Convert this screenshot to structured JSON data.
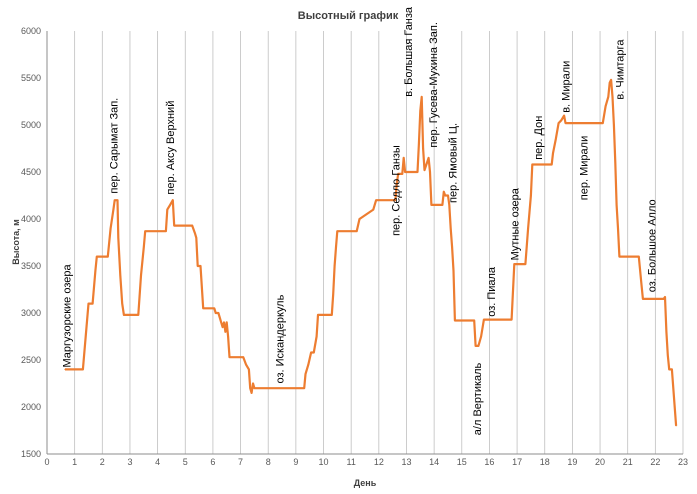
{
  "colors": {
    "line": "#ed7d31",
    "grid": "#bfbfbf",
    "text": "#404040"
  },
  "chart_data": {
    "type": "line",
    "title": "Высотный график",
    "xlabel": "День",
    "ylabel": "Высота, м",
    "xlim": [
      0,
      23
    ],
    "ylim": [
      1500,
      6000
    ],
    "xticks": [
      0,
      1,
      2,
      3,
      4,
      5,
      6,
      7,
      8,
      9,
      10,
      11,
      12,
      13,
      14,
      15,
      16,
      17,
      18,
      19,
      20,
      21,
      22,
      23
    ],
    "yticks": [
      1500,
      2000,
      2500,
      3000,
      3500,
      4000,
      4500,
      5000,
      5500,
      6000
    ],
    "grid": "vertical",
    "legend": "none",
    "series": [
      {
        "points": [
          [
            0.65,
            2400
          ],
          [
            1.3,
            2400
          ],
          [
            1.4,
            2750
          ],
          [
            1.5,
            3100
          ],
          [
            1.65,
            3100
          ],
          [
            1.75,
            3450
          ],
          [
            1.8,
            3600
          ],
          [
            2.2,
            3600
          ],
          [
            2.3,
            3900
          ],
          [
            2.4,
            4100
          ],
          [
            2.45,
            4200
          ],
          [
            2.55,
            4200
          ],
          [
            2.58,
            3800
          ],
          [
            2.65,
            3400
          ],
          [
            2.72,
            3100
          ],
          [
            2.78,
            2980
          ],
          [
            3.3,
            2980
          ],
          [
            3.4,
            3400
          ],
          [
            3.5,
            3700
          ],
          [
            3.55,
            3870
          ],
          [
            4.3,
            3870
          ],
          [
            4.35,
            4100
          ],
          [
            4.45,
            4150
          ],
          [
            4.55,
            4200
          ],
          [
            4.6,
            3930
          ],
          [
            5.25,
            3930
          ],
          [
            5.35,
            3850
          ],
          [
            5.4,
            3800
          ],
          [
            5.45,
            3500
          ],
          [
            5.55,
            3500
          ],
          [
            5.65,
            3050
          ],
          [
            6.05,
            3050
          ],
          [
            6.1,
            3000
          ],
          [
            6.2,
            3000
          ],
          [
            6.3,
            2900
          ],
          [
            6.35,
            2850
          ],
          [
            6.4,
            2900
          ],
          [
            6.45,
            2800
          ],
          [
            6.5,
            2900
          ],
          [
            6.55,
            2750
          ],
          [
            6.6,
            2530
          ],
          [
            7.1,
            2530
          ],
          [
            7.2,
            2450
          ],
          [
            7.3,
            2400
          ],
          [
            7.35,
            2200
          ],
          [
            7.4,
            2150
          ],
          [
            7.45,
            2250
          ],
          [
            7.5,
            2200
          ],
          [
            9.3,
            2200
          ],
          [
            9.35,
            2350
          ],
          [
            9.45,
            2450
          ],
          [
            9.55,
            2580
          ],
          [
            9.65,
            2580
          ],
          [
            9.75,
            2750
          ],
          [
            9.8,
            2980
          ],
          [
            10.3,
            2980
          ],
          [
            10.35,
            3200
          ],
          [
            10.4,
            3500
          ],
          [
            10.45,
            3700
          ],
          [
            10.5,
            3870
          ],
          [
            11.2,
            3870
          ],
          [
            11.3,
            4000
          ],
          [
            11.8,
            4100
          ],
          [
            11.9,
            4200
          ],
          [
            12.6,
            4200
          ],
          [
            12.65,
            4380
          ],
          [
            12.7,
            4480
          ],
          [
            12.85,
            4480
          ],
          [
            12.9,
            4650
          ],
          [
            12.95,
            4500
          ],
          [
            13.4,
            4500
          ],
          [
            13.45,
            4800
          ],
          [
            13.5,
            5150
          ],
          [
            13.55,
            5300
          ],
          [
            13.6,
            4750
          ],
          [
            13.65,
            4520
          ],
          [
            13.8,
            4650
          ],
          [
            13.85,
            4500
          ],
          [
            13.9,
            4150
          ],
          [
            14.3,
            4150
          ],
          [
            14.35,
            4290
          ],
          [
            14.4,
            4250
          ],
          [
            14.5,
            4250
          ],
          [
            14.55,
            4150
          ],
          [
            14.6,
            3900
          ],
          [
            14.65,
            3700
          ],
          [
            14.7,
            3450
          ],
          [
            14.75,
            2920
          ],
          [
            15.45,
            2920
          ],
          [
            15.5,
            2650
          ],
          [
            15.6,
            2650
          ],
          [
            15.7,
            2750
          ],
          [
            15.8,
            2930
          ],
          [
            16.8,
            2930
          ],
          [
            16.9,
            3520
          ],
          [
            17.3,
            3520
          ],
          [
            17.4,
            3900
          ],
          [
            17.5,
            4250
          ],
          [
            17.55,
            4580
          ],
          [
            18.25,
            4580
          ],
          [
            18.3,
            4700
          ],
          [
            18.4,
            4850
          ],
          [
            18.5,
            5020
          ],
          [
            18.6,
            5050
          ],
          [
            18.7,
            5100
          ],
          [
            18.75,
            5020
          ],
          [
            20.1,
            5020
          ],
          [
            20.2,
            5200
          ],
          [
            20.3,
            5300
          ],
          [
            20.35,
            5450
          ],
          [
            20.4,
            5480
          ],
          [
            20.45,
            5300
          ],
          [
            20.5,
            5000
          ],
          [
            20.55,
            4600
          ],
          [
            20.6,
            4150
          ],
          [
            20.65,
            3900
          ],
          [
            20.7,
            3600
          ],
          [
            21.4,
            3600
          ],
          [
            21.5,
            3300
          ],
          [
            21.55,
            3150
          ],
          [
            22.3,
            3150
          ],
          [
            22.35,
            3170
          ],
          [
            22.4,
            2800
          ],
          [
            22.45,
            2550
          ],
          [
            22.5,
            2400
          ],
          [
            22.6,
            2400
          ],
          [
            22.7,
            2000
          ],
          [
            22.75,
            1800
          ]
        ]
      }
    ],
    "annotations": [
      {
        "text": "Маргузорские озера",
        "x": 0.85,
        "y": 2420
      },
      {
        "text": "пер. Сарымат Зап.",
        "x": 2.55,
        "y": 4270
      },
      {
        "text": "пер. Аксу Верхний",
        "x": 4.6,
        "y": 4260
      },
      {
        "text": "оз. Искандеркуль",
        "x": 8.55,
        "y": 2250
      },
      {
        "text": "пер. Седло Ганзы",
        "x": 12.75,
        "y": 3820
      },
      {
        "text": "в. Большая Ганза",
        "x": 13.2,
        "y": 5300
      },
      {
        "text": "пер. Гусева-Мухина Зап.",
        "x": 14.1,
        "y": 4760
      },
      {
        "text": "пер. Ямовый Ц.",
        "x": 14.8,
        "y": 4170
      },
      {
        "text": "а/л Вертикаль",
        "x": 15.7,
        "y": 1700
      },
      {
        "text": "оз. Пиала",
        "x": 16.2,
        "y": 2960
      },
      {
        "text": "Мутные озера",
        "x": 17.05,
        "y": 3560
      },
      {
        "text": "пер. Дон",
        "x": 17.9,
        "y": 4630
      },
      {
        "text": "в. Мирали",
        "x": 18.9,
        "y": 5130
      },
      {
        "text": "пер. Мирали",
        "x": 19.55,
        "y": 4200
      },
      {
        "text": "в. Чимтарга",
        "x": 20.85,
        "y": 5270
      },
      {
        "text": "оз. Большое Алло",
        "x": 22.0,
        "y": 3220
      }
    ]
  }
}
